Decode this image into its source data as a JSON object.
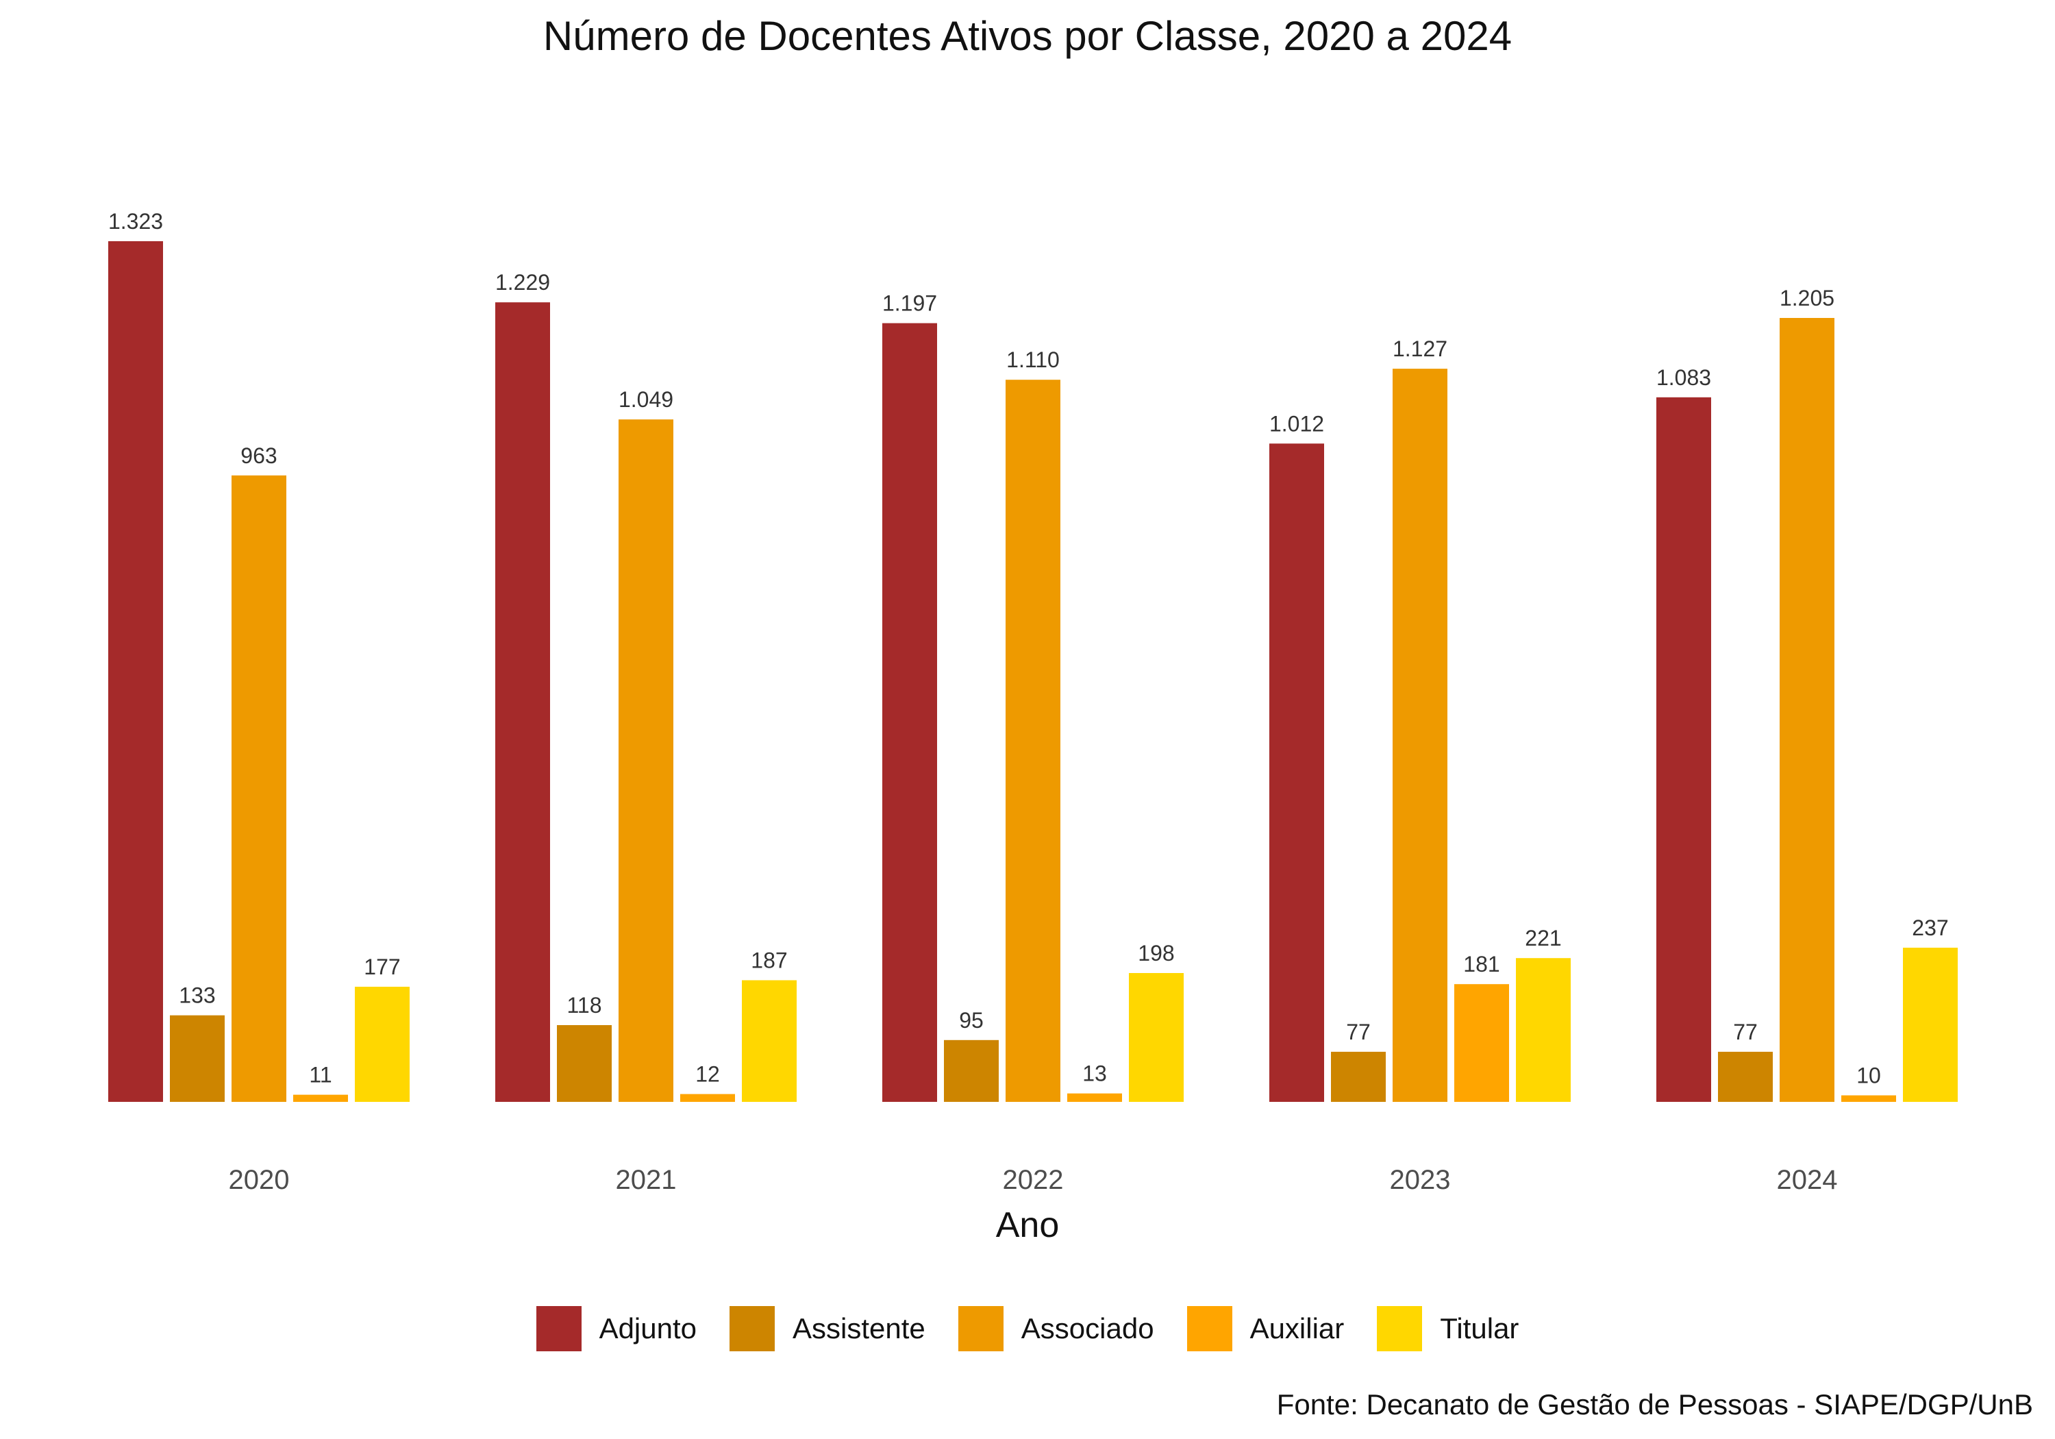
{
  "chart_data": {
    "type": "bar",
    "title": "Número de Docentes Ativos por Classe, 2020 a 2024",
    "xlabel": "Ano",
    "ylabel": "",
    "caption": "Fonte: Decanato de Gestão de Pessoas - SIAPE/DGP/UnB",
    "categories": [
      "2020",
      "2021",
      "2022",
      "2023",
      "2024"
    ],
    "ylim": [
      0,
      1323
    ],
    "grid": false,
    "legend_position": "bottom",
    "series": [
      {
        "name": "Adjunto",
        "color": "#A52A2A",
        "values": [
          1323,
          1229,
          1197,
          1012,
          1083
        ],
        "labels": [
          "1.323",
          "1.229",
          "1.197",
          "1.012",
          "1.083"
        ]
      },
      {
        "name": "Assistente",
        "color": "#CD8500",
        "values": [
          133,
          118,
          95,
          77,
          77
        ],
        "labels": [
          "133",
          "118",
          "95",
          "77",
          "77"
        ]
      },
      {
        "name": "Associado",
        "color": "#EE9A00",
        "values": [
          963,
          1049,
          1110,
          1127,
          1205
        ],
        "labels": [
          "963",
          "1.049",
          "1.110",
          "1.127",
          "1.205"
        ]
      },
      {
        "name": "Auxiliar",
        "color": "#FFA500",
        "values": [
          11,
          12,
          13,
          181,
          10
        ],
        "labels": [
          "11",
          "12",
          "13",
          "181",
          "10"
        ]
      },
      {
        "name": "Titular",
        "color": "#FFD700",
        "values": [
          177,
          187,
          198,
          221,
          237
        ],
        "labels": [
          "177",
          "187",
          "198",
          "221",
          "237"
        ]
      }
    ]
  }
}
